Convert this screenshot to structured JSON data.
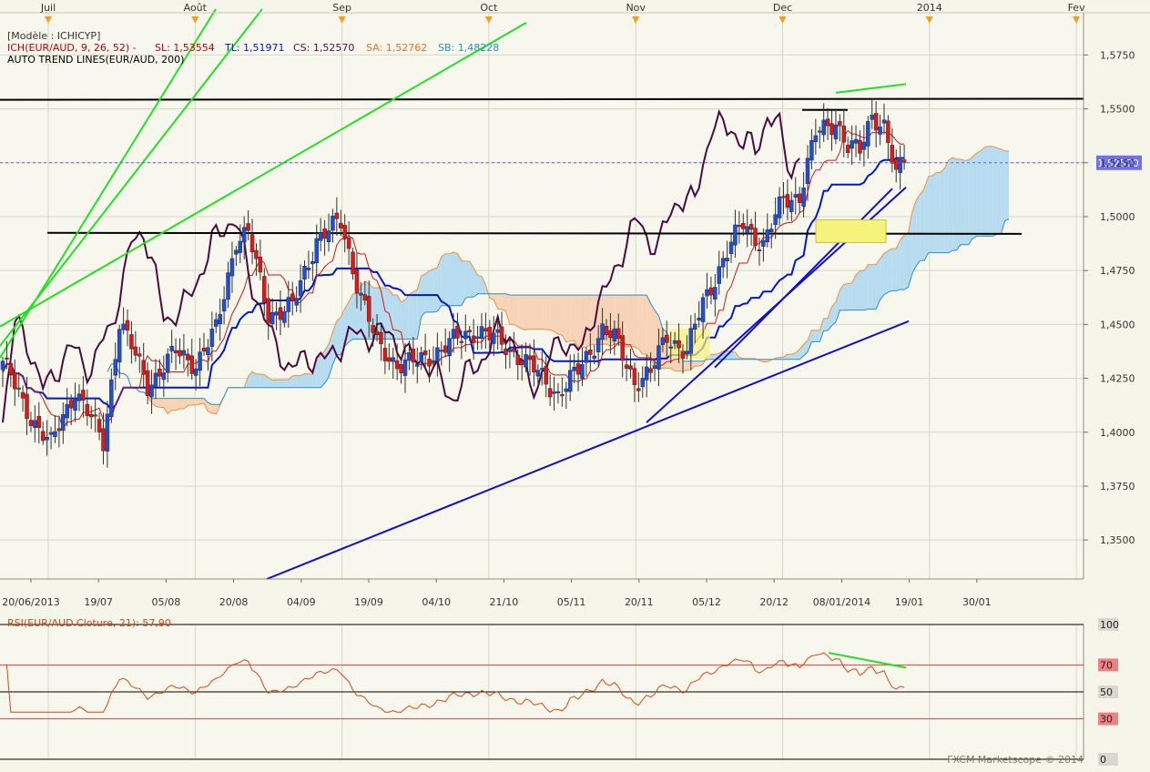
{
  "months": [
    {
      "label": "Juil",
      "pos": 0.0
    },
    {
      "label": "Août",
      "pos": 1.0
    },
    {
      "label": "Sep",
      "pos": 2.0
    },
    {
      "label": "Oct",
      "pos": 3.0
    },
    {
      "label": "Nov",
      "pos": 4.0
    },
    {
      "label": "Dec",
      "pos": 5.0
    },
    {
      "label": "2014",
      "pos": 6.0
    },
    {
      "label": "Fev",
      "pos": 7.0
    }
  ],
  "legend": {
    "model": "[Modèle : ICHICYP]",
    "ich_prefix": "ICH(EUR/AUD, 9, 26, 52) -",
    "sl": "SL: 1,53554",
    "tl": "TL: 1,51971",
    "cs": "CS: 1,52570",
    "sa": "SA: 1,52762",
    "sb": "SB: 1,48228",
    "trend": "AUTO TREND LINES(EUR/AUD, 200)"
  },
  "price_label": "1,52570",
  "rsi_legend": "RSI(EUR/AUD.Cloture, 21): 57,90",
  "watermark": "FXCM Marketscope © 2014",
  "colors": {
    "bull": "#1f4fd8",
    "bear": "#e01818",
    "kijun": "#0018c8",
    "tenkan": "#d41414",
    "chikou": "#4a0a40",
    "cloud_bull": "#b8dcef",
    "cloud_bear": "#f7d3b8",
    "trend_green": "#21e021",
    "trend_blue": "#1010c8",
    "rsi_line": "#d04a10"
  },
  "chart_data": [
    {
      "type": "candlestick",
      "title": "EUR/AUD",
      "ylim": [
        1.3319,
        1.5946
      ],
      "y_ticks": [
        "1,3500",
        "1,3750",
        "1,4000",
        "1,4250",
        "1,4500",
        "1,4750",
        "1,5000",
        "1,5250",
        "1,5500",
        "1,5750"
      ],
      "y_tick_values": [
        1.35,
        1.375,
        1.4,
        1.425,
        1.45,
        1.475,
        1.5,
        1.525,
        1.55,
        1.575
      ],
      "x_ticks": [
        "20/06/2013",
        "19/07",
        "05/08",
        "20/08",
        "04/09",
        "19/09",
        "04/10",
        "21/10",
        "05/11",
        "20/11",
        "05/12",
        "20/12",
        "08/01/2014",
        "19/01",
        "30/01"
      ],
      "x_tick_pos": [
        0.0,
        0.1,
        0.2,
        0.3,
        0.4,
        0.5,
        0.6,
        0.7,
        0.8,
        0.9,
        1.0,
        1.1,
        1.2,
        1.3,
        1.4
      ],
      "close_anchors": [
        [
          0,
          1.433
        ],
        [
          5,
          1.413
        ],
        [
          12,
          1.394
        ],
        [
          18,
          1.42
        ],
        [
          25,
          1.395
        ],
        [
          29,
          1.452
        ],
        [
          36,
          1.422
        ],
        [
          43,
          1.437
        ],
        [
          48,
          1.432
        ],
        [
          53,
          1.447
        ],
        [
          58,
          1.49
        ],
        [
          61,
          1.492
        ],
        [
          66,
          1.455
        ],
        [
          72,
          1.458
        ],
        [
          78,
          1.49
        ],
        [
          84,
          1.497
        ],
        [
          88,
          1.47
        ],
        [
          93,
          1.44
        ],
        [
          98,
          1.432
        ],
        [
          103,
          1.432
        ],
        [
          108,
          1.438
        ],
        [
          113,
          1.443
        ],
        [
          118,
          1.448
        ],
        [
          123,
          1.442
        ],
        [
          128,
          1.436
        ],
        [
          133,
          1.427
        ],
        [
          138,
          1.418
        ],
        [
          143,
          1.428
        ],
        [
          146,
          1.438
        ],
        [
          149,
          1.448
        ],
        [
          152,
          1.443
        ],
        [
          157,
          1.424
        ],
        [
          161,
          1.427
        ],
        [
          165,
          1.445
        ],
        [
          170,
          1.437
        ],
        [
          174,
          1.46
        ],
        [
          179,
          1.48
        ],
        [
          184,
          1.497
        ],
        [
          189,
          1.487
        ],
        [
          194,
          1.508
        ],
        [
          198,
          1.51
        ],
        [
          202,
          1.538
        ],
        [
          207,
          1.545
        ],
        [
          210,
          1.532
        ],
        [
          213,
          1.53
        ],
        [
          216,
          1.548
        ],
        [
          219,
          1.542
        ],
        [
          222,
          1.518
        ],
        [
          224,
          1.525
        ]
      ]
    },
    {
      "type": "line",
      "title": "RSI(EUR/AUD.Cloture, 21)",
      "ylim": [
        0,
        100
      ],
      "y_ticks": [
        "100",
        "70",
        "50",
        "30",
        "0"
      ],
      "y_tick_values": [
        100,
        70,
        50,
        30,
        0
      ],
      "last_value": 57.9
    }
  ]
}
